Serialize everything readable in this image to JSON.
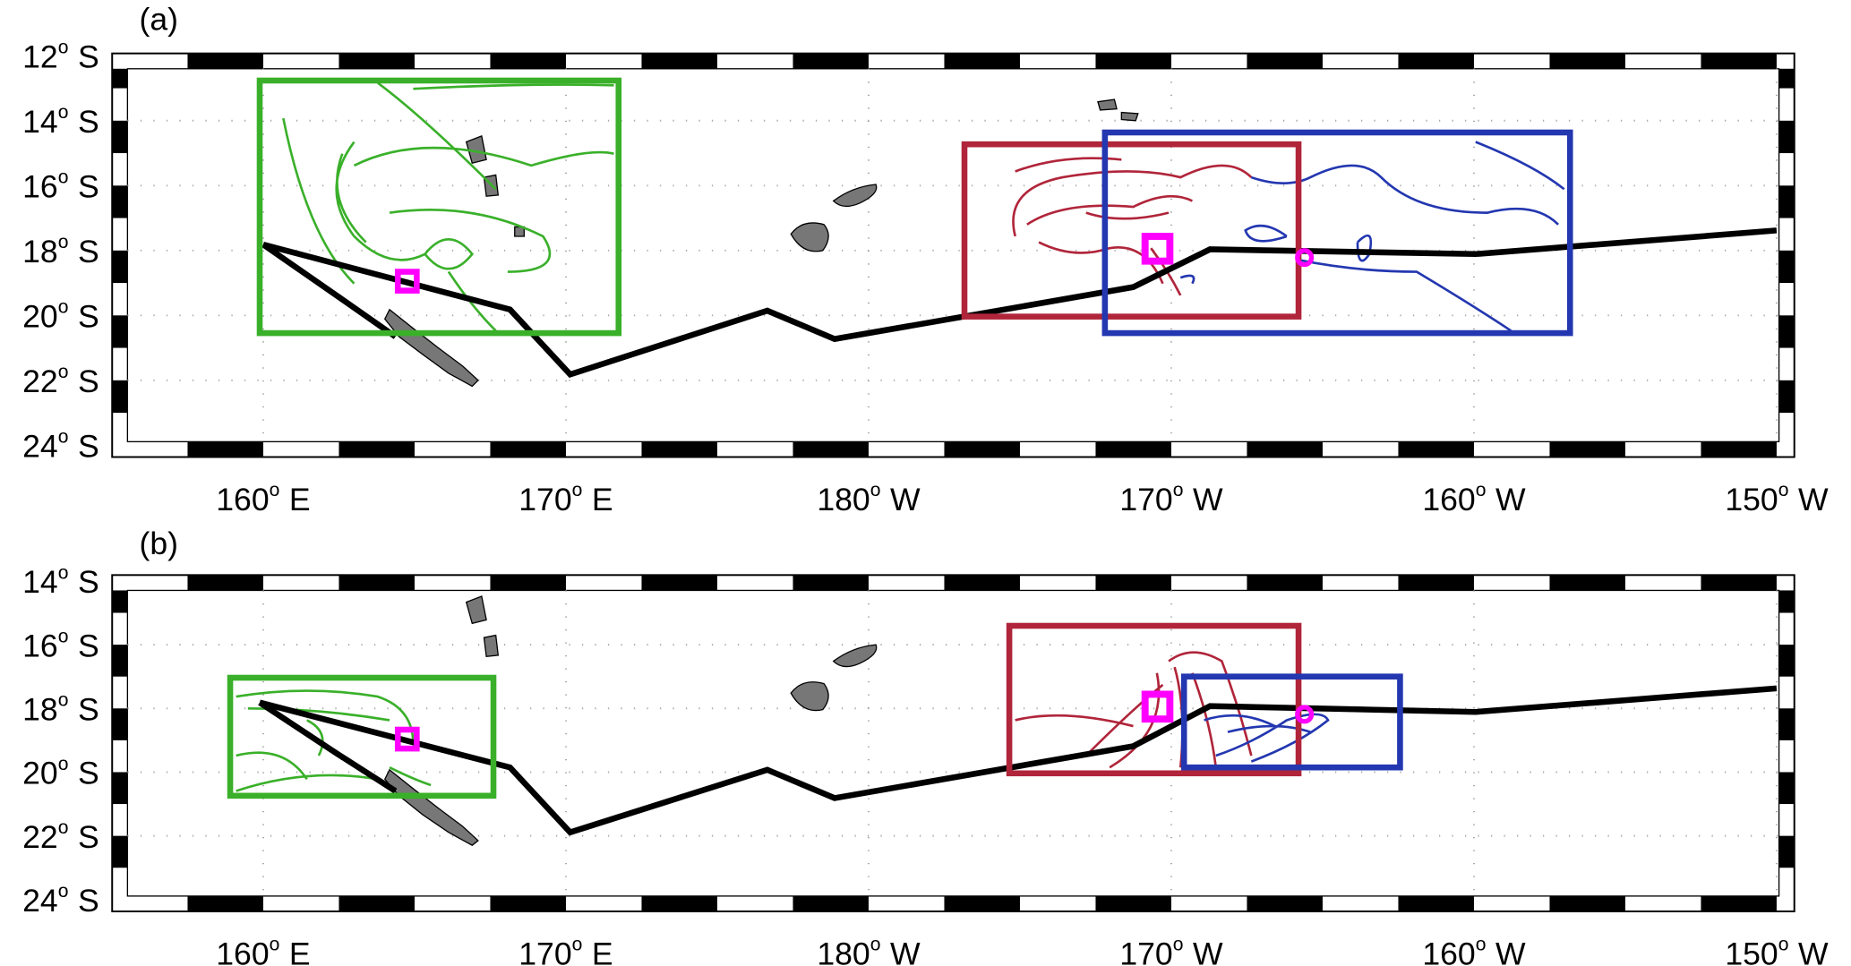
{
  "panels": [
    {
      "label": "(a)",
      "lat_ticks": [
        {
          "value": -12,
          "label": "12",
          "deg": "o",
          "hemi": "S"
        },
        {
          "value": -14,
          "label": "14",
          "deg": "o",
          "hemi": "S"
        },
        {
          "value": -16,
          "label": "16",
          "deg": "o",
          "hemi": "S"
        },
        {
          "value": -18,
          "label": "18",
          "deg": "o",
          "hemi": "S"
        },
        {
          "value": -20,
          "label": "20",
          "deg": "o",
          "hemi": "S"
        },
        {
          "value": -22,
          "label": "22",
          "deg": "o",
          "hemi": "S"
        },
        {
          "value": -24,
          "label": "24",
          "deg": "o",
          "hemi": "S"
        }
      ],
      "lon_ticks": [
        {
          "value": 160,
          "label": "160",
          "deg": "o",
          "hemi": "E"
        },
        {
          "value": 170,
          "label": "170",
          "deg": "o",
          "hemi": "E"
        },
        {
          "value": 180,
          "label": "180",
          "deg": "o",
          "hemi": "W"
        },
        {
          "value": 190,
          "label": "170",
          "deg": "o",
          "hemi": "W"
        },
        {
          "value": 200,
          "label": "160",
          "deg": "o",
          "hemi": "W"
        },
        {
          "value": 210,
          "label": "150",
          "deg": "o",
          "hemi": "W"
        }
      ]
    },
    {
      "label": "(b)",
      "lat_ticks": [
        {
          "value": -14,
          "label": "14",
          "deg": "o",
          "hemi": "S"
        },
        {
          "value": -16,
          "label": "16",
          "deg": "o",
          "hemi": "S"
        },
        {
          "value": -18,
          "label": "18",
          "deg": "o",
          "hemi": "S"
        },
        {
          "value": -20,
          "label": "20",
          "deg": "o",
          "hemi": "S"
        },
        {
          "value": -22,
          "label": "22",
          "deg": "o",
          "hemi": "S"
        },
        {
          "value": -24,
          "label": "24",
          "deg": "o",
          "hemi": "S"
        }
      ],
      "lon_ticks": [
        {
          "value": 160,
          "label": "160",
          "deg": "o",
          "hemi": "E"
        },
        {
          "value": 170,
          "label": "170",
          "deg": "o",
          "hemi": "E"
        },
        {
          "value": 180,
          "label": "180",
          "deg": "o",
          "hemi": "W"
        },
        {
          "value": 190,
          "label": "170",
          "deg": "o",
          "hemi": "W"
        },
        {
          "value": 200,
          "label": "160",
          "deg": "o",
          "hemi": "W"
        },
        {
          "value": 210,
          "label": "150",
          "deg": "o",
          "hemi": "W"
        }
      ]
    }
  ]
}
